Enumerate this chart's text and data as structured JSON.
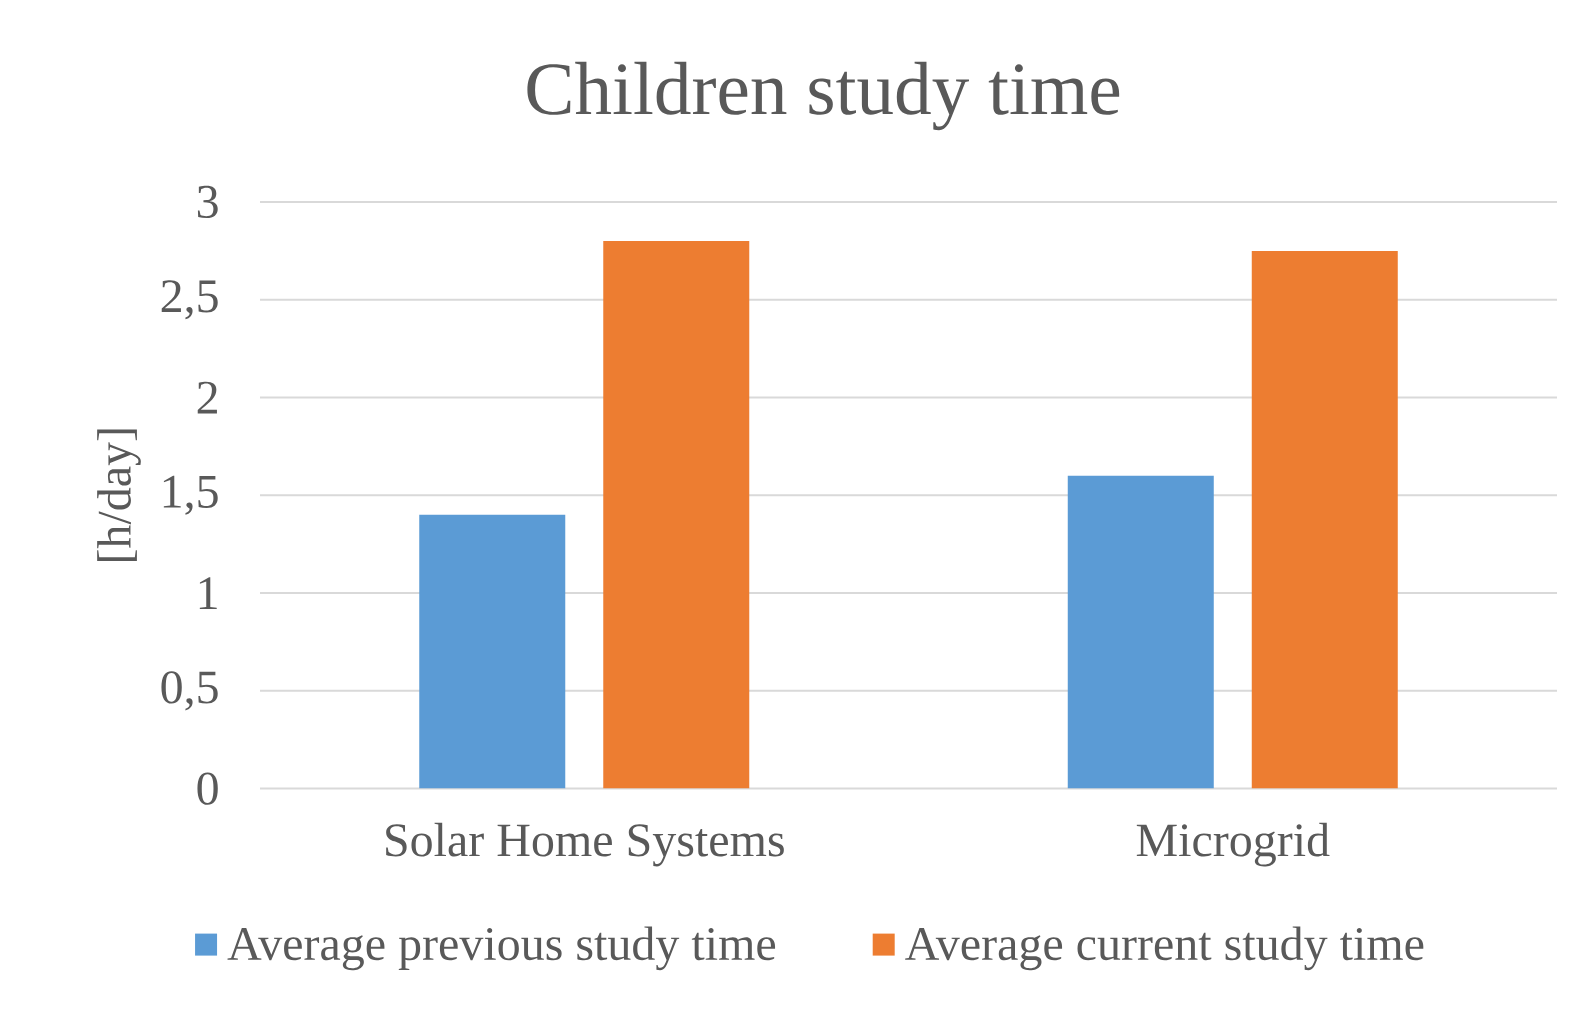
{
  "chart_data": {
    "type": "bar",
    "title": "Children study time",
    "ylabel": "[h/day]",
    "categories": [
      "Solar Home Systems",
      "Microgrid"
    ],
    "series": [
      {
        "name": "Average previous study time",
        "color": "#5b9bd5",
        "values": [
          1.4,
          1.6
        ]
      },
      {
        "name": "Average current study time",
        "color": "#ed7d31",
        "values": [
          2.8,
          2.75
        ]
      }
    ],
    "ylim": [
      0,
      3
    ],
    "yticks": [
      0,
      {
        "value": 0.5,
        "label": "0,5"
      },
      1,
      {
        "value": 1.5,
        "label": "1,5"
      },
      2,
      {
        "value": 2.5,
        "label": "2,5"
      },
      3
    ],
    "grid": "y",
    "legend": "bottom"
  }
}
